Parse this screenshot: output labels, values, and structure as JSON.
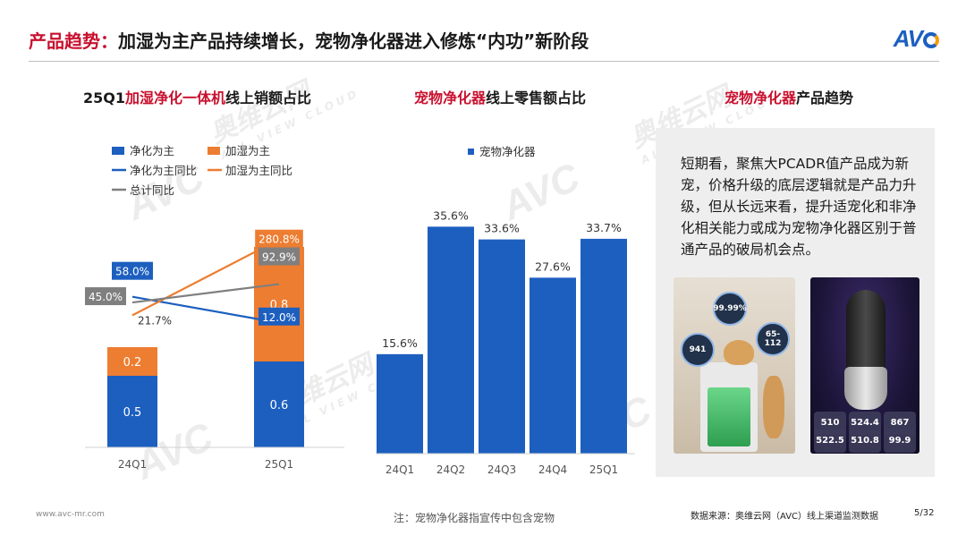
{
  "header": {
    "title_accent": "产品趋势：",
    "title_rest": "加湿为主产品持续增长，宠物净化器进入修炼“内功”新阶段",
    "logo_text": "AV",
    "logo_icon": "avc-logo-icon"
  },
  "watermark": {
    "cn": "奥维云网",
    "en": "ALL VIEW CLOUD",
    "logo": "AVC"
  },
  "panel1": {
    "title_pre": "25Q1",
    "title_red": "加湿净化一体机",
    "title_post": "线上销额占比"
  },
  "panel2": {
    "title_red": "宠物净化器",
    "title_post": "线上零售额占比"
  },
  "panel3": {
    "title_red": "宠物净化器",
    "title_post": "产品趋势",
    "text": "短期看，聚焦大PCADR值产品成为新宠，价格升级的底层逻辑就是产品力升级，但从长远来看，提升适宠化和非净化相关能力或成为宠物净化器区别于普通产品的破局机会点。",
    "image1_badges": [
      "99.99%",
      "941",
      "65-112"
    ],
    "image2_stats": [
      "510",
      "524.4",
      "867",
      "522.5",
      "510.8",
      "99.9"
    ]
  },
  "colors": {
    "blue": "#1d5fbf",
    "orange": "#ed7d31",
    "gray": "#7f7f7f",
    "red": "#c8102e"
  },
  "chart_data": [
    {
      "type": "bar",
      "stacked": true,
      "categories": [
        "24Q1",
        "25Q1"
      ],
      "series": [
        {
          "name": "净化为主",
          "kind": "bar",
          "values": [
            0.5,
            0.6
          ],
          "labels": [
            "0.5",
            "0.6"
          ],
          "color": "#1d5fbf"
        },
        {
          "name": "加湿为主",
          "kind": "bar",
          "values": [
            0.2,
            0.8
          ],
          "labels": [
            "0.2",
            "0.8"
          ],
          "color": "#ed7d31"
        },
        {
          "name": "净化为主同比",
          "kind": "line",
          "values": [
            58.0,
            12.0
          ],
          "labels": [
            "58.0%",
            "12.0%"
          ],
          "color": "#1d5fbf"
        },
        {
          "name": "加湿为主同比",
          "kind": "line",
          "values": [
            21.7,
            280.8
          ],
          "labels": [
            "21.7%",
            "280.8%"
          ],
          "color": "#ed7d31"
        },
        {
          "name": "总计同比",
          "kind": "line",
          "values": [
            45.0,
            92.9
          ],
          "labels": [
            "45.0%",
            "92.9%"
          ],
          "color": "#7f7f7f"
        }
      ],
      "legend_position": "top-left",
      "grid": false
    },
    {
      "type": "bar",
      "categories": [
        "24Q1",
        "24Q2",
        "24Q3",
        "24Q4",
        "25Q1"
      ],
      "series": [
        {
          "name": "宠物净化器",
          "values": [
            15.6,
            35.6,
            33.6,
            27.6,
            33.7
          ],
          "labels": [
            "15.6%",
            "35.6%",
            "33.6%",
            "27.6%",
            "33.7%"
          ],
          "color": "#1d5fbf"
        }
      ],
      "ylim": [
        0,
        40
      ],
      "legend_position": "top-left",
      "grid": false
    }
  ],
  "footer": {
    "url": "www.avc-mr.com",
    "note": "注：宠物净化器指宣传中包含宠物",
    "source": "数据来源：奥维云网（AVC）线上渠道监测数据",
    "page": "5/32"
  }
}
